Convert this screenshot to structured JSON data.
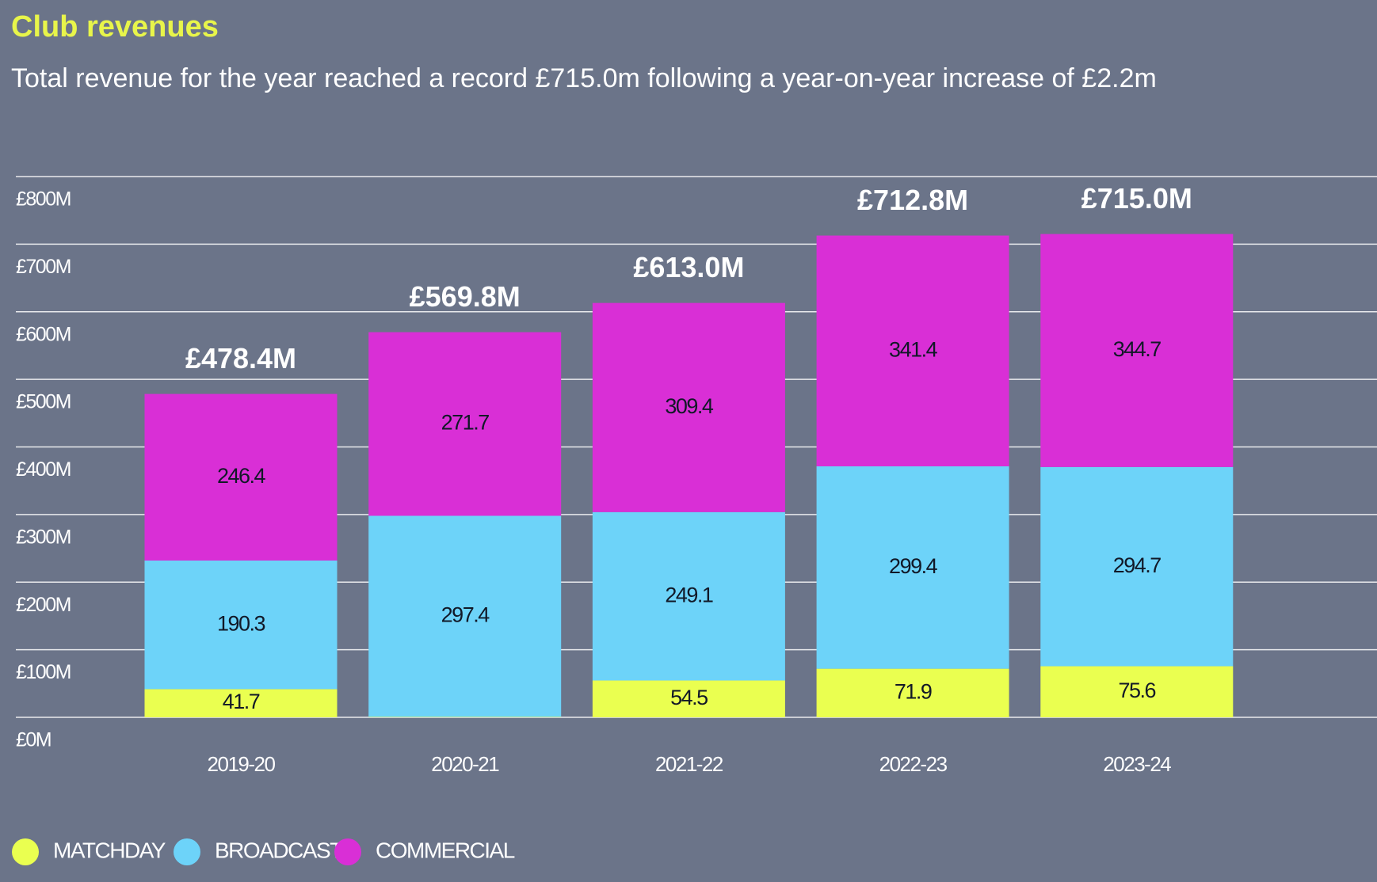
{
  "chart_data": {
    "type": "stacked_bar",
    "title": "Club revenues",
    "subtitle": "Total revenue for the year reached a record £715.0m following a year-on-year increase of £2.2m",
    "categories": [
      "2019-20",
      "2020-21",
      "2021-22",
      "2022-23",
      "2023-24"
    ],
    "series": [
      {
        "name": "MATCHDAY",
        "color": "#eaff50",
        "values": [
          41.7,
          0.7,
          54.5,
          71.9,
          75.6
        ]
      },
      {
        "name": "BROADCAST",
        "color": "#6dd3f9",
        "values": [
          190.3,
          297.4,
          249.1,
          299.4,
          294.7
        ]
      },
      {
        "name": "COMMERCIAL",
        "color": "#d92fd6",
        "values": [
          246.4,
          271.7,
          309.4,
          341.4,
          344.7
        ]
      }
    ],
    "totals": {
      "values": [
        478.4,
        569.8,
        613.0,
        712.8,
        715.0
      ],
      "value_labels": [
        "£478.4M",
        "£569.8M",
        "£613.0M",
        "£712.8M",
        "£715.0M"
      ]
    },
    "ylim": [
      0,
      800
    ],
    "yticks": [
      {
        "value": 0,
        "label": "£0M"
      },
      {
        "value": 100,
        "label": "£100M"
      },
      {
        "value": 200,
        "label": "£200M"
      },
      {
        "value": 300,
        "label": "£300M"
      },
      {
        "value": 400,
        "label": "£400M"
      },
      {
        "value": 500,
        "label": "£500M"
      },
      {
        "value": 600,
        "label": "£600M"
      },
      {
        "value": 700,
        "label": "£700M"
      },
      {
        "value": 800,
        "label": "£800M"
      }
    ],
    "grid": true,
    "legend": "bottom"
  }
}
